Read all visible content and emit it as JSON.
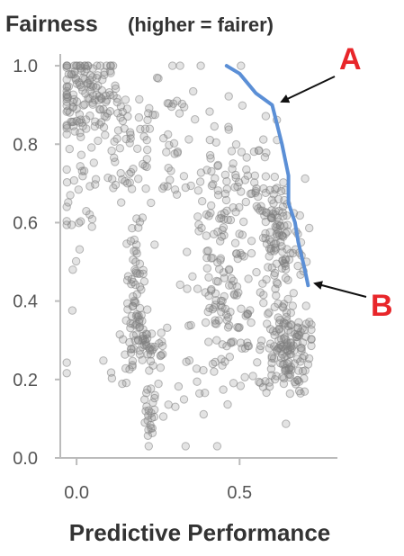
{
  "chart_data": {
    "type": "scatter",
    "title": "Fairness",
    "subtitle": "(higher = fairer)",
    "xlabel": "Predictive Performance",
    "xlim": [
      -0.05,
      0.8
    ],
    "ylim": [
      0.0,
      1.03
    ],
    "x_ticks": [
      0.0,
      0.5
    ],
    "x_tick_labels": [
      "0.0",
      "0.5"
    ],
    "y_ticks": [
      0.0,
      0.2,
      0.4,
      0.6,
      0.8,
      1.0
    ],
    "y_tick_labels": [
      "0.0",
      "0.2",
      "0.4",
      "0.6",
      "0.8",
      "1.0"
    ],
    "grid": false,
    "point_color": "#808080",
    "clusters": [
      {
        "cx": 0.03,
        "cy": 0.93,
        "sx": 0.05,
        "sy": 0.06,
        "n": 120
      },
      {
        "cx": 0.13,
        "cy": 0.82,
        "sx": 0.08,
        "sy": 0.1,
        "n": 70
      },
      {
        "cx": 0.3,
        "cy": 0.8,
        "sx": 0.1,
        "sy": 0.12,
        "n": 60
      },
      {
        "cx": 0.0,
        "cy": 0.65,
        "sx": 0.03,
        "sy": 0.12,
        "n": 25
      },
      {
        "cx": 0.18,
        "cy": 0.47,
        "sx": 0.015,
        "sy": 0.06,
        "n": 40
      },
      {
        "cx": 0.18,
        "cy": 0.3,
        "sx": 0.02,
        "sy": 0.06,
        "n": 35
      },
      {
        "cx": 0.23,
        "cy": 0.28,
        "sx": 0.03,
        "sy": 0.03,
        "n": 30
      },
      {
        "cx": 0.22,
        "cy": 0.09,
        "sx": 0.012,
        "sy": 0.04,
        "n": 20
      },
      {
        "cx": 0.45,
        "cy": 0.55,
        "sx": 0.05,
        "sy": 0.12,
        "n": 90
      },
      {
        "cx": 0.46,
        "cy": 0.33,
        "sx": 0.05,
        "sy": 0.08,
        "n": 60
      },
      {
        "cx": 0.62,
        "cy": 0.55,
        "sx": 0.04,
        "sy": 0.08,
        "n": 110
      },
      {
        "cx": 0.64,
        "cy": 0.28,
        "sx": 0.04,
        "sy": 0.06,
        "n": 150
      },
      {
        "cx": 0.53,
        "cy": 0.7,
        "sx": 0.06,
        "sy": 0.08,
        "n": 45
      },
      {
        "cx": 0.3,
        "cy": 0.2,
        "sx": 0.15,
        "sy": 0.12,
        "n": 40
      }
    ],
    "pareto_front": {
      "color": "#5b8fd6",
      "x": [
        0.46,
        0.5,
        0.55,
        0.6,
        0.63,
        0.65,
        0.65,
        0.67,
        0.68,
        0.7,
        0.71
      ],
      "y": [
        1.0,
        0.98,
        0.93,
        0.9,
        0.8,
        0.72,
        0.65,
        0.6,
        0.55,
        0.48,
        0.44
      ]
    },
    "annotations": [
      {
        "label": "A",
        "color": "#e8262a",
        "arrow_color": "#111111"
      },
      {
        "label": "B",
        "color": "#e8262a",
        "arrow_color": "#111111"
      }
    ]
  }
}
